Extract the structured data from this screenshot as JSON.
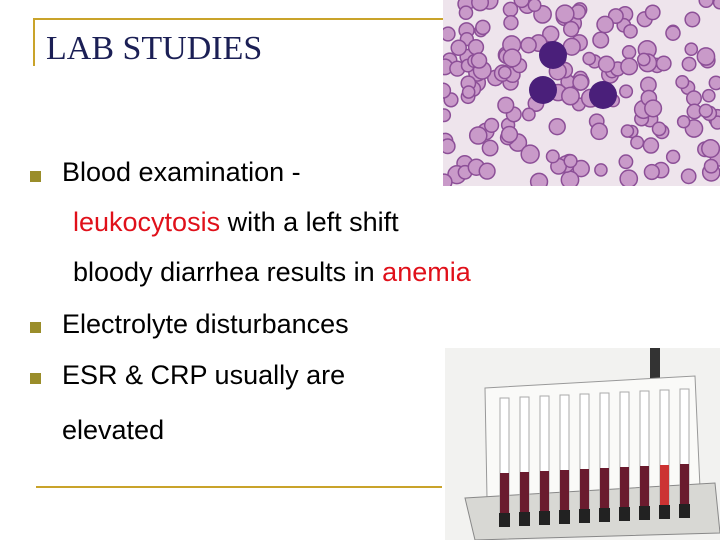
{
  "title": "LAB STUDIES",
  "bullets": [
    {
      "lines": [
        [
          "Blood examination -"
        ],
        [
          "leukocytosis",
          " with a left shift"
        ],
        [
          "bloody diarrhea results in ",
          "anemia"
        ]
      ]
    },
    {
      "lines": [
        [
          "Electrolyte disturbances"
        ]
      ]
    },
    {
      "lines": [
        [
          "ESR & CRP usually are"
        ],
        [
          "elevated"
        ]
      ]
    }
  ]
}
